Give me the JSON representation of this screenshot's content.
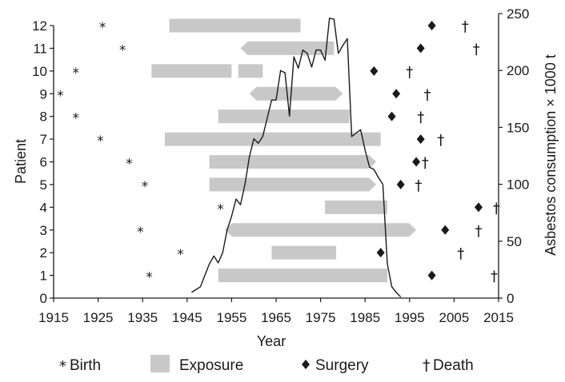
{
  "chart_data": {
    "type": "timeline",
    "xlabel": "Year",
    "ylabel": "Patient",
    "y2label": "Asbestos consumption × 1000 t",
    "xlim": [
      1915,
      2015
    ],
    "xticks": [
      1915,
      1925,
      1935,
      1945,
      1955,
      1965,
      1975,
      1985,
      1995,
      2005,
      2015
    ],
    "ylim": [
      0,
      12
    ],
    "yticks": [
      0,
      1,
      2,
      3,
      4,
      5,
      6,
      7,
      8,
      9,
      10,
      11,
      12
    ],
    "y2lim": [
      0,
      250
    ],
    "y2ticks": [
      0,
      50,
      100,
      150,
      200,
      250
    ],
    "grid": false,
    "legend": {
      "position": "bottom",
      "entries": [
        {
          "label": "Birth",
          "symbol": "*",
          "type": "birth"
        },
        {
          "label": "Exposure",
          "symbol": "bar",
          "type": "exposure",
          "color": "#c8c8c8"
        },
        {
          "label": "Surgery",
          "symbol": "◆",
          "type": "surgery"
        },
        {
          "label": "Death",
          "symbol": "†",
          "type": "death"
        }
      ]
    },
    "colors": {
      "exposure": "#c8c8c8",
      "text": "#1a1a1a",
      "line": "#1a1a1a"
    },
    "patients": [
      {
        "id": 12,
        "birth": 1926,
        "exposure": [
          [
            1941,
            1970.5
          ]
        ],
        "exposure_arrow": null,
        "surgery": 2000,
        "death": 2007.5
      },
      {
        "id": 11,
        "birth": 1930.5,
        "exposure": [
          [
            1957,
            1978
          ]
        ],
        "exposure_arrow": "left",
        "surgery": 1997.5,
        "death": 2010
      },
      {
        "id": 10,
        "birth": 1920,
        "exposure": [
          [
            1937,
            1955
          ],
          [
            1956.5,
            1962
          ]
        ],
        "exposure_arrow": null,
        "surgery": 1987,
        "death": 1995
      },
      {
        "id": 9,
        "birth": 1916.5,
        "exposure": [
          [
            1959,
            1980
          ]
        ],
        "exposure_arrow": "both",
        "surgery": 1992,
        "death": 1999
      },
      {
        "id": 8,
        "birth": 1920,
        "exposure": [
          [
            1952,
            1981.5
          ]
        ],
        "exposure_arrow": null,
        "surgery": 1991,
        "death": 1997.5
      },
      {
        "id": 7,
        "birth": 1925.5,
        "exposure": [
          [
            1940,
            1988.5
          ]
        ],
        "exposure_arrow": null,
        "surgery": 1997.5,
        "death": 2002
      },
      {
        "id": 6,
        "birth": 1932,
        "exposure": [
          [
            1950,
            1987.5
          ]
        ],
        "exposure_arrow": "right",
        "surgery": 1996.5,
        "death": 1998.5
      },
      {
        "id": 5,
        "birth": 1935.5,
        "exposure": [
          [
            1950,
            1987.5
          ]
        ],
        "exposure_arrow": "right",
        "surgery": 1993,
        "death": 1997
      },
      {
        "id": 4,
        "birth": 1952.5,
        "exposure": [
          [
            1976,
            1990
          ]
        ],
        "exposure_arrow": null,
        "surgery": 2010.5,
        "death": 2014.5
      },
      {
        "id": 3,
        "birth": 1934.5,
        "exposure": [
          [
            1953.5,
            1996.5
          ]
        ],
        "exposure_arrow": "both",
        "surgery": 2003,
        "death": 2010.5
      },
      {
        "id": 2,
        "birth": 1943.5,
        "exposure": [
          [
            1964,
            1978.5
          ]
        ],
        "exposure_arrow": null,
        "surgery": 1988.5,
        "death": 2006.5
      },
      {
        "id": 1,
        "birth": 1936.5,
        "exposure": [
          [
            1952,
            1990
          ]
        ],
        "exposure_arrow": null,
        "surgery": 2000,
        "death": 2014
      }
    ],
    "consumption_series": {
      "name": "",
      "x": [
        1946,
        1948,
        1949,
        1950,
        1951,
        1952,
        1953,
        1954,
        1955,
        1956,
        1957,
        1958,
        1959,
        1960,
        1961,
        1962,
        1963,
        1964,
        1965,
        1966,
        1967,
        1968,
        1969,
        1970,
        1971,
        1972,
        1973,
        1974,
        1975,
        1976,
        1977,
        1978,
        1979,
        1980,
        1981,
        1982,
        1983,
        1984,
        1985,
        1986,
        1987,
        1988,
        1989,
        1990,
        1991,
        1992,
        1993
      ],
      "y": [
        5,
        10,
        20,
        30,
        37,
        31,
        40,
        60,
        72,
        87,
        82,
        100,
        124,
        140,
        136,
        142,
        158,
        174,
        174,
        200,
        198,
        160,
        212,
        202,
        218,
        215,
        203,
        218,
        218,
        209,
        246,
        245,
        215,
        222,
        228,
        142,
        145,
        148,
        130,
        115,
        113,
        106,
        100,
        30,
        10,
        5,
        1
      ]
    }
  }
}
